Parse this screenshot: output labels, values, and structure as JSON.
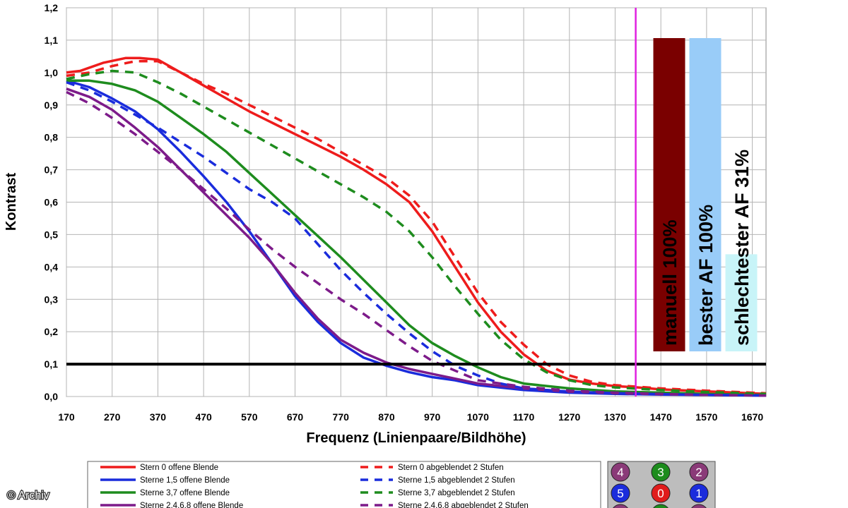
{
  "copyright": "© Archiv",
  "chart_data": {
    "type": "line",
    "xlabel": "Frequenz (Linienpaare/Bildhöhe)",
    "ylabel": "Kontrast",
    "xlim": [
      170,
      1700
    ],
    "ylim": [
      0,
      1.2
    ],
    "x_ticks": [
      "170",
      "270",
      "370",
      "470",
      "570",
      "670",
      "770",
      "870",
      "970",
      "1070",
      "1170",
      "1270",
      "1370",
      "1470",
      "1570",
      "1670"
    ],
    "y_ticks": [
      "0,0",
      "0,1",
      "0,2",
      "0,3",
      "0,4",
      "0,5",
      "0,6",
      "0,7",
      "0,8",
      "0,9",
      "1,0",
      "1,1",
      "1,2"
    ],
    "grid": true,
    "threshold_line": 0.1,
    "marker_line_x": 1415,
    "series": [
      {
        "name": "Stern 0 offene Blende",
        "color": "#ee1c1c",
        "dash": false,
        "x": [
          170,
          200,
          250,
          300,
          330,
          370,
          420,
          470,
          520,
          570,
          620,
          670,
          720,
          770,
          820,
          870,
          920,
          970,
          1020,
          1070,
          1120,
          1170,
          1220,
          1270,
          1320,
          1370,
          1420,
          1470,
          1570,
          1700
        ],
        "y": [
          1.0,
          1.005,
          1.03,
          1.045,
          1.045,
          1.04,
          1.0,
          0.96,
          0.92,
          0.88,
          0.845,
          0.81,
          0.775,
          0.74,
          0.7,
          0.655,
          0.6,
          0.51,
          0.4,
          0.29,
          0.2,
          0.13,
          0.08,
          0.052,
          0.04,
          0.032,
          0.028,
          0.022,
          0.016,
          0.008
        ]
      },
      {
        "name": "Sterne 1,5 offene Blende",
        "color": "#1a2cdc",
        "dash": false,
        "x": [
          170,
          220,
          270,
          320,
          370,
          420,
          470,
          520,
          570,
          620,
          670,
          720,
          770,
          820,
          870,
          920,
          970,
          1020,
          1070,
          1170,
          1270,
          1370,
          1470,
          1570,
          1700
        ],
        "y": [
          0.975,
          0.955,
          0.92,
          0.88,
          0.825,
          0.755,
          0.68,
          0.6,
          0.51,
          0.41,
          0.31,
          0.23,
          0.165,
          0.12,
          0.095,
          0.075,
          0.06,
          0.05,
          0.035,
          0.02,
          0.012,
          0.008,
          0.006,
          0.005,
          0.003
        ]
      },
      {
        "name": "Sterne 3,7 offene Blende",
        "color": "#1e8c1e",
        "dash": false,
        "x": [
          170,
          220,
          270,
          320,
          370,
          420,
          470,
          520,
          570,
          620,
          670,
          720,
          770,
          820,
          870,
          920,
          970,
          1020,
          1070,
          1120,
          1170,
          1270,
          1370,
          1470,
          1570,
          1700
        ],
        "y": [
          0.975,
          0.975,
          0.965,
          0.945,
          0.91,
          0.86,
          0.81,
          0.755,
          0.69,
          0.625,
          0.56,
          0.495,
          0.43,
          0.36,
          0.29,
          0.22,
          0.165,
          0.125,
          0.09,
          0.06,
          0.04,
          0.025,
          0.016,
          0.012,
          0.008,
          0.005
        ]
      },
      {
        "name": "Sterne 2,4,6,8 offene Blende",
        "color": "#7d1b8a",
        "dash": false,
        "x": [
          170,
          220,
          270,
          320,
          370,
          420,
          470,
          520,
          570,
          620,
          670,
          720,
          770,
          820,
          870,
          920,
          970,
          1020,
          1070,
          1170,
          1270,
          1370,
          1470,
          1570,
          1700
        ],
        "y": [
          0.95,
          0.925,
          0.885,
          0.83,
          0.77,
          0.7,
          0.63,
          0.56,
          0.49,
          0.41,
          0.32,
          0.24,
          0.175,
          0.135,
          0.105,
          0.085,
          0.07,
          0.055,
          0.04,
          0.025,
          0.015,
          0.01,
          0.007,
          0.005,
          0.003
        ]
      },
      {
        "name": "Stern 0 abgeblendet 2 Stufen",
        "color": "#ee1c1c",
        "dash": true,
        "x": [
          170,
          220,
          270,
          320,
          370,
          420,
          470,
          520,
          570,
          620,
          670,
          720,
          770,
          820,
          870,
          920,
          970,
          1020,
          1070,
          1120,
          1170,
          1220,
          1270,
          1320,
          1370,
          1470,
          1570,
          1700
        ],
        "y": [
          0.99,
          1.0,
          1.02,
          1.035,
          1.035,
          1.0,
          0.965,
          0.935,
          0.9,
          0.865,
          0.83,
          0.795,
          0.755,
          0.715,
          0.675,
          0.62,
          0.54,
          0.43,
          0.32,
          0.23,
          0.16,
          0.1,
          0.065,
          0.045,
          0.035,
          0.025,
          0.018,
          0.01
        ]
      },
      {
        "name": "Sterne 1,5 abgeblendet 2 Stufen",
        "color": "#1a2cdc",
        "dash": true,
        "x": [
          170,
          220,
          270,
          320,
          370,
          420,
          470,
          520,
          570,
          620,
          670,
          720,
          770,
          820,
          870,
          920,
          970,
          1020,
          1070,
          1120,
          1170,
          1270,
          1370,
          1470,
          1570,
          1700
        ],
        "y": [
          0.97,
          0.945,
          0.91,
          0.87,
          0.83,
          0.785,
          0.74,
          0.69,
          0.64,
          0.6,
          0.55,
          0.47,
          0.39,
          0.32,
          0.255,
          0.195,
          0.14,
          0.095,
          0.065,
          0.04,
          0.025,
          0.015,
          0.01,
          0.007,
          0.005,
          0.003
        ]
      },
      {
        "name": "Sterne 3,7 abgeblendet 2 Stufen",
        "color": "#1e8c1e",
        "dash": true,
        "x": [
          170,
          220,
          270,
          320,
          370,
          420,
          470,
          520,
          570,
          620,
          670,
          720,
          770,
          820,
          870,
          920,
          970,
          1020,
          1070,
          1120,
          1170,
          1220,
          1270,
          1320,
          1370,
          1470,
          1570,
          1700
        ],
        "y": [
          0.98,
          0.995,
          1.005,
          1.0,
          0.97,
          0.935,
          0.895,
          0.855,
          0.815,
          0.775,
          0.735,
          0.695,
          0.655,
          0.615,
          0.57,
          0.51,
          0.43,
          0.34,
          0.255,
          0.175,
          0.115,
          0.075,
          0.05,
          0.035,
          0.028,
          0.02,
          0.014,
          0.008
        ]
      },
      {
        "name": "Sterne 2,4,6,8 abgeblendet 2 Stufen",
        "color": "#7d1b8a",
        "dash": true,
        "x": [
          170,
          220,
          270,
          320,
          370,
          420,
          470,
          520,
          570,
          620,
          670,
          720,
          770,
          820,
          870,
          920,
          970,
          1020,
          1070,
          1170,
          1270,
          1370,
          1470,
          1570,
          1700
        ],
        "y": [
          0.94,
          0.905,
          0.86,
          0.81,
          0.755,
          0.7,
          0.64,
          0.58,
          0.515,
          0.455,
          0.4,
          0.35,
          0.3,
          0.255,
          0.205,
          0.155,
          0.11,
          0.08,
          0.05,
          0.03,
          0.018,
          0.012,
          0.008,
          0.005,
          0.003
        ]
      }
    ],
    "bars": [
      {
        "label": "manuell 100%",
        "value": 100,
        "color": "#7a0000"
      },
      {
        "label": "bester AF 100%",
        "value": 100,
        "color": "#99ccf8"
      },
      {
        "label": "schlechtester AF 31%",
        "value": 31,
        "color": "#c8f4f8"
      }
    ],
    "positions": [
      {
        "label": "4",
        "color": "#8a3a78"
      },
      {
        "label": "3",
        "color": "#1c8c1c"
      },
      {
        "label": "2",
        "color": "#8a3a78"
      },
      {
        "label": "5",
        "color": "#1a2cdc"
      },
      {
        "label": "0",
        "color": "#e01c1c"
      },
      {
        "label": "1",
        "color": "#1a2cdc"
      }
    ]
  }
}
